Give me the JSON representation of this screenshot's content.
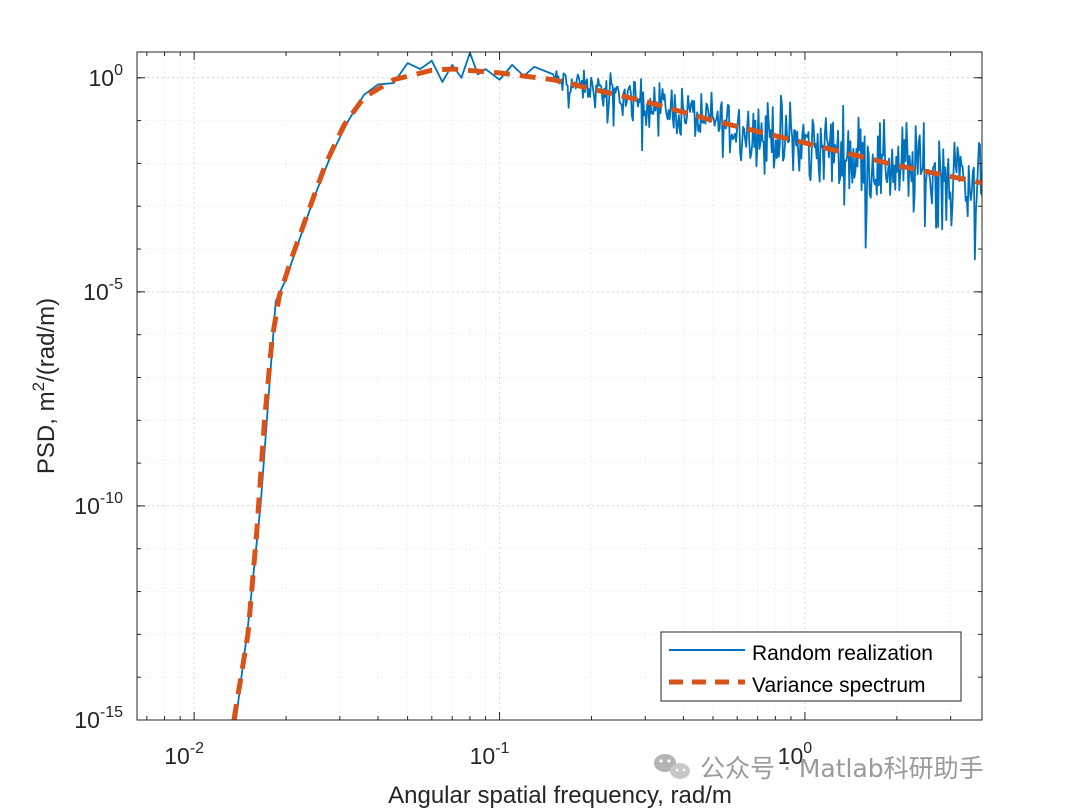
{
  "chart_data": {
    "type": "line",
    "scale": {
      "x": "log",
      "y": "log"
    },
    "xlabel": "Angular spatial frequency, rad/m",
    "ylabel": {
      "base": "PSD, m",
      "sup": "2",
      "tail": "/(rad/m)"
    },
    "xlim": [
      0.0065,
      3.8
    ],
    "ylim": [
      1e-15,
      4
    ],
    "grid": true,
    "grid_minor": true,
    "x_ticks": [
      {
        "value": 0.01,
        "base": "10",
        "exp": "-2"
      },
      {
        "value": 0.1,
        "base": "10",
        "exp": "-1"
      },
      {
        "value": 1,
        "base": "10",
        "exp": "0"
      }
    ],
    "y_ticks": [
      {
        "value": 1,
        "base": "10",
        "exp": "0"
      },
      {
        "value": 1e-05,
        "base": "10",
        "exp": "-5"
      },
      {
        "value": 1e-10,
        "base": "10",
        "exp": "-10"
      },
      {
        "value": 1e-15,
        "base": "10",
        "exp": "-15"
      }
    ],
    "legend_location": "bottom-right",
    "series": [
      {
        "name": "Random realization",
        "color": "#0072BD",
        "style": "solid",
        "noisy_from_x": 0.15,
        "points": [
          [
            0.0137,
            1e-15
          ],
          [
            0.015,
            1.5e-13
          ],
          [
            0.0165,
            1e-10
          ],
          [
            0.0175,
            3e-08
          ],
          [
            0.0185,
            6e-06
          ],
          [
            0.02,
            2e-05
          ],
          [
            0.022,
            0.00015
          ],
          [
            0.025,
            0.002
          ],
          [
            0.028,
            0.015
          ],
          [
            0.032,
            0.1
          ],
          [
            0.036,
            0.4
          ],
          [
            0.04,
            0.7
          ],
          [
            0.045,
            0.75
          ],
          [
            0.05,
            2.2
          ],
          [
            0.055,
            1.6
          ],
          [
            0.06,
            2.5
          ],
          [
            0.065,
            0.8
          ],
          [
            0.07,
            2.0
          ],
          [
            0.075,
            1.0
          ],
          [
            0.08,
            3.8
          ],
          [
            0.085,
            1.2
          ],
          [
            0.09,
            1.6
          ],
          [
            0.1,
            0.9
          ],
          [
            0.11,
            2.0
          ],
          [
            0.12,
            1.1
          ],
          [
            0.13,
            1.8
          ],
          [
            0.15,
            1.2
          ]
        ]
      },
      {
        "name": "Variance spectrum",
        "color": "#D95319",
        "style": "dashed",
        "points": [
          [
            0.0135,
            1e-15
          ],
          [
            0.015,
            1e-13
          ],
          [
            0.016,
            2e-11
          ],
          [
            0.017,
            1e-08
          ],
          [
            0.018,
            8e-07
          ],
          [
            0.019,
            8e-06
          ],
          [
            0.021,
            7e-05
          ],
          [
            0.024,
            0.001
          ],
          [
            0.027,
            0.01
          ],
          [
            0.031,
            0.08
          ],
          [
            0.036,
            0.35
          ],
          [
            0.045,
            0.9
          ],
          [
            0.06,
            1.5
          ],
          [
            0.07,
            1.6
          ],
          [
            0.1,
            1.3
          ],
          [
            0.15,
            0.9
          ],
          [
            0.2,
            0.55
          ],
          [
            0.3,
            0.28
          ],
          [
            0.5,
            0.1
          ],
          [
            1,
            0.03
          ],
          [
            2,
            0.009
          ],
          [
            3.8,
            0.0035
          ]
        ]
      }
    ]
  },
  "watermark": {
    "icon": "wechat-icon",
    "text": "公众号 · Matlab科研助手"
  }
}
